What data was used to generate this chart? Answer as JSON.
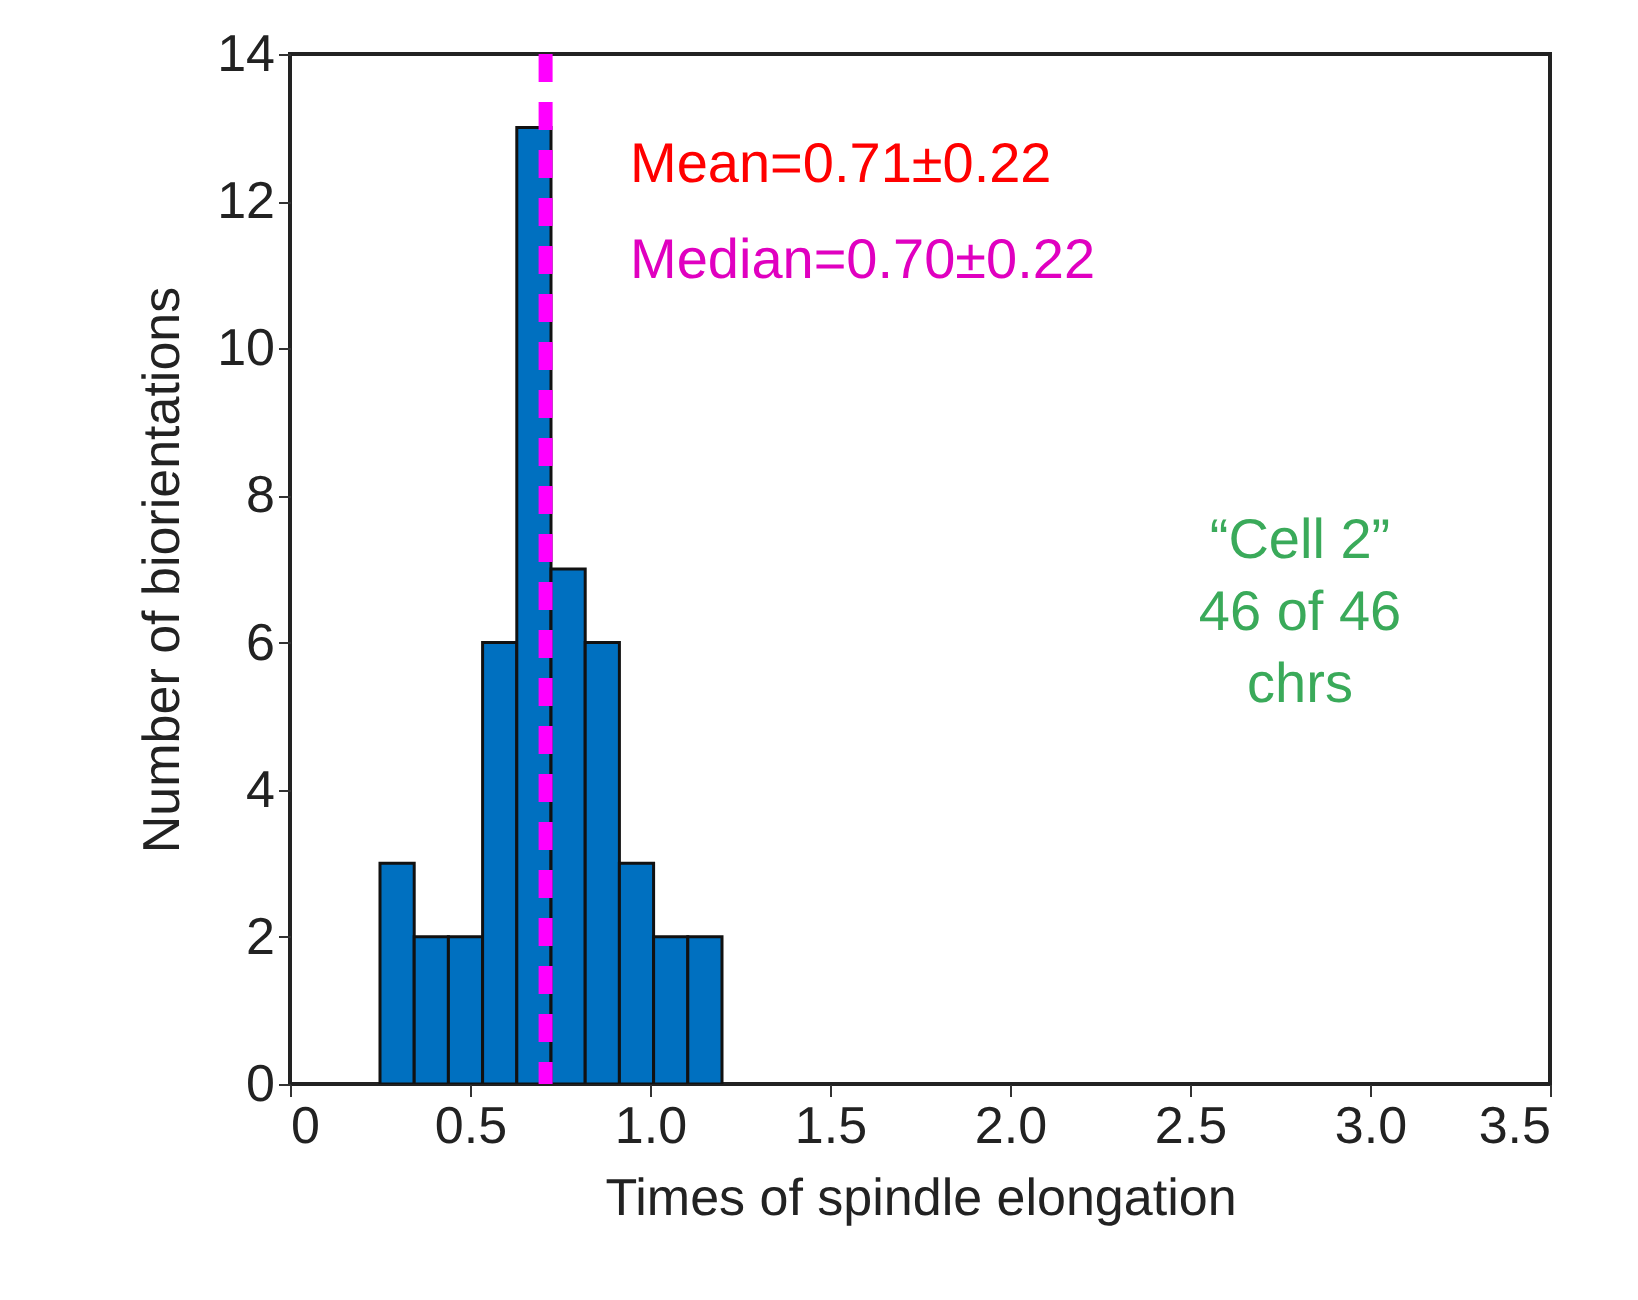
{
  "chart_data": {
    "type": "histogram",
    "xlabel": "Times of spindle elongation",
    "ylabel": "Number of biorientations",
    "bins": [
      0.25,
      0.345,
      0.44,
      0.535,
      0.63,
      0.725,
      0.82,
      0.915,
      1.01,
      1.105,
      1.2
    ],
    "values": [
      3,
      2,
      2,
      6,
      13,
      7,
      6,
      3,
      2,
      2
    ],
    "color": "#0070c0",
    "xlim": [
      0,
      3.5
    ],
    "xticks": [
      0,
      0.5,
      {
        "value": 1,
        "label": "1.0"
      },
      1.5,
      {
        "value": 2,
        "label": "2.0"
      },
      2.5,
      {
        "value": 3,
        "label": "3.0"
      },
      3.5
    ],
    "ylim": [
      0,
      14
    ],
    "yticks": [
      0,
      2,
      4,
      6,
      8,
      10,
      12,
      14
    ],
    "ref_lines": [
      {
        "axis": "x",
        "value": 0.71,
        "label": null,
        "color": "#ff00ff",
        "line_style": "dashed"
      }
    ],
    "annotations": [
      "Mean=0.71±0.22",
      "Median=0.70±0.22",
      "“Cell 2”\n46 of 46\nchrs"
    ],
    "grid": false
  }
}
